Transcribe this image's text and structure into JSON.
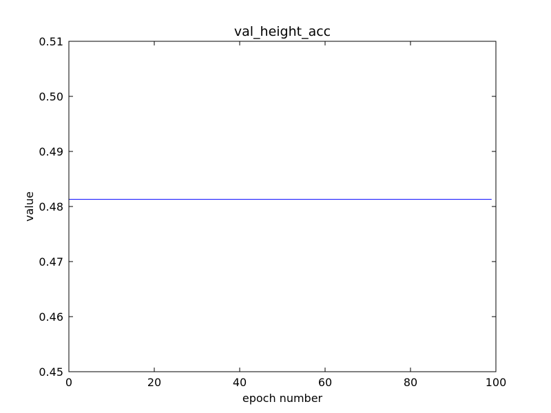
{
  "chart_data": {
    "type": "line",
    "title": "val_height_acc",
    "xlabel": "epoch number",
    "ylabel": "value",
    "xlim": [
      0,
      100
    ],
    "ylim": [
      0.45,
      0.51
    ],
    "xticks": [
      0,
      20,
      40,
      60,
      80,
      100
    ],
    "xtick_labels": [
      "0",
      "20",
      "40",
      "60",
      "80",
      "100"
    ],
    "yticks": [
      0.45,
      0.46,
      0.47,
      0.48,
      0.49,
      0.5,
      0.51
    ],
    "ytick_labels": [
      "0.45",
      "0.46",
      "0.47",
      "0.48",
      "0.49",
      "0.50",
      "0.51"
    ],
    "grid": false,
    "series": [
      {
        "color": "#0000ff",
        "x": [
          0,
          99
        ],
        "y": [
          0.4813,
          0.4813
        ]
      }
    ]
  }
}
